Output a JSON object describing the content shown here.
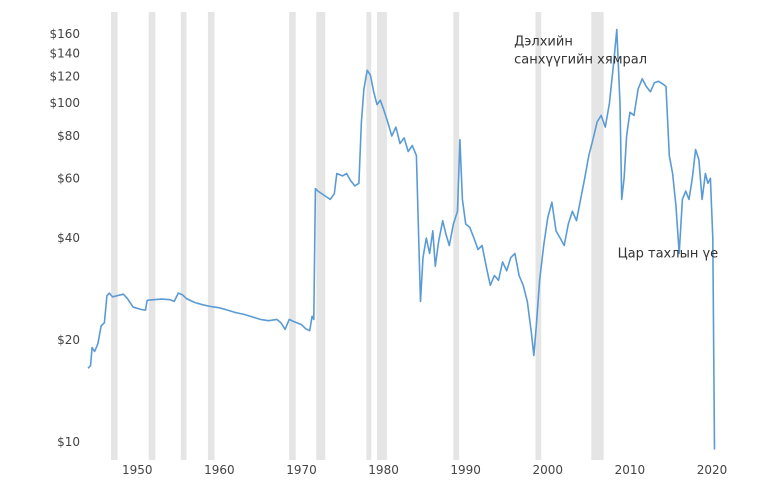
{
  "chart_data": {
    "type": "line",
    "title": "",
    "xlabel": "",
    "ylabel": "",
    "y_scale": "log",
    "xlim": [
      1944,
      2020
    ],
    "ylim": [
      9.5,
      170
    ],
    "grid": false,
    "legend": "none",
    "x_ticks": [
      1950,
      1960,
      1970,
      1980,
      1990,
      2000,
      2010,
      2020
    ],
    "x_tick_labels": [
      "1950",
      "1960",
      "1970",
      "1980",
      "1990",
      "2000",
      "2010",
      "2020"
    ],
    "y_ticks": [
      10,
      20,
      40,
      60,
      80,
      100,
      120,
      140,
      160
    ],
    "y_tick_labels": [
      "$10",
      "$20",
      "$40",
      "$60",
      "$80",
      "$100",
      "$120",
      "$140",
      "$160"
    ],
    "recession_bands": [
      [
        1946.8,
        1947.6
      ],
      [
        1951.4,
        1952.2
      ],
      [
        1955.3,
        1956.0
      ],
      [
        1958.6,
        1959.4
      ],
      [
        1968.5,
        1969.3
      ],
      [
        1971.8,
        1972.9
      ],
      [
        1977.9,
        1978.5
      ],
      [
        1979.2,
        1980.4
      ],
      [
        1988.5,
        1989.2
      ],
      [
        1998.5,
        1999.2
      ],
      [
        2005.3,
        2006.8
      ]
    ],
    "series": [
      {
        "color": "#5b9bd5",
        "points": [
          [
            1944.0,
            16.5
          ],
          [
            1944.3,
            16.8
          ],
          [
            1944.5,
            19.0
          ],
          [
            1944.8,
            18.5
          ],
          [
            1945.2,
            19.5
          ],
          [
            1945.6,
            22.0
          ],
          [
            1946.0,
            22.5
          ],
          [
            1946.3,
            27.0
          ],
          [
            1946.6,
            27.5
          ],
          [
            1947.0,
            26.8
          ],
          [
            1947.5,
            27.0
          ],
          [
            1948.3,
            27.3
          ],
          [
            1948.8,
            26.5
          ],
          [
            1949.5,
            25.0
          ],
          [
            1950.5,
            24.6
          ],
          [
            1951.0,
            24.5
          ],
          [
            1951.2,
            26.2
          ],
          [
            1952.0,
            26.3
          ],
          [
            1953.0,
            26.4
          ],
          [
            1954.0,
            26.3
          ],
          [
            1954.5,
            26.0
          ],
          [
            1955.0,
            27.5
          ],
          [
            1955.5,
            27.2
          ],
          [
            1956.0,
            26.5
          ],
          [
            1957.0,
            25.8
          ],
          [
            1958.0,
            25.4
          ],
          [
            1959.0,
            25.1
          ],
          [
            1960.0,
            24.9
          ],
          [
            1961.0,
            24.5
          ],
          [
            1962.0,
            24.1
          ],
          [
            1963.0,
            23.8
          ],
          [
            1964.0,
            23.4
          ],
          [
            1965.0,
            23.0
          ],
          [
            1966.0,
            22.8
          ],
          [
            1967.0,
            23.0
          ],
          [
            1967.5,
            22.5
          ],
          [
            1968.0,
            21.5
          ],
          [
            1968.5,
            23.0
          ],
          [
            1969.0,
            22.7
          ],
          [
            1970.0,
            22.2
          ],
          [
            1970.5,
            21.6
          ],
          [
            1971.0,
            21.3
          ],
          [
            1971.3,
            23.5
          ],
          [
            1971.5,
            23.0
          ],
          [
            1971.7,
            56.0
          ],
          [
            1972.0,
            55.0
          ],
          [
            1972.5,
            54.0
          ],
          [
            1973.0,
            53.0
          ],
          [
            1973.5,
            52.0
          ],
          [
            1974.0,
            54.0
          ],
          [
            1974.3,
            62.0
          ],
          [
            1975.0,
            61.0
          ],
          [
            1975.5,
            62.0
          ],
          [
            1976.0,
            59.0
          ],
          [
            1976.5,
            57.0
          ],
          [
            1977.0,
            58.0
          ],
          [
            1977.3,
            88.0
          ],
          [
            1977.6,
            110.0
          ],
          [
            1978.0,
            125.0
          ],
          [
            1978.4,
            121.0
          ],
          [
            1978.8,
            108.0
          ],
          [
            1979.2,
            99.0
          ],
          [
            1979.6,
            102.0
          ],
          [
            1980.0,
            96.0
          ],
          [
            1980.5,
            88.0
          ],
          [
            1981.0,
            80.0
          ],
          [
            1981.5,
            85.0
          ],
          [
            1982.0,
            76.0
          ],
          [
            1982.5,
            79.0
          ],
          [
            1983.0,
            72.0
          ],
          [
            1983.5,
            75.0
          ],
          [
            1984.0,
            70.0
          ],
          [
            1984.3,
            38.0
          ],
          [
            1984.5,
            26.0
          ],
          [
            1984.8,
            35.0
          ],
          [
            1985.2,
            40.0
          ],
          [
            1985.6,
            36.0
          ],
          [
            1986.0,
            42.0
          ],
          [
            1986.3,
            33.0
          ],
          [
            1986.7,
            39.0
          ],
          [
            1987.2,
            45.0
          ],
          [
            1987.6,
            41.0
          ],
          [
            1988.0,
            38.0
          ],
          [
            1988.5,
            44.0
          ],
          [
            1989.0,
            48.0
          ],
          [
            1989.3,
            78.0
          ],
          [
            1989.6,
            52.0
          ],
          [
            1990.0,
            44.0
          ],
          [
            1990.5,
            43.0
          ],
          [
            1991.0,
            40.0
          ],
          [
            1991.5,
            37.0
          ],
          [
            1992.0,
            38.0
          ],
          [
            1992.5,
            33.0
          ],
          [
            1993.0,
            29.0
          ],
          [
            1993.5,
            31.0
          ],
          [
            1994.0,
            30.0
          ],
          [
            1994.5,
            34.0
          ],
          [
            1995.0,
            32.0
          ],
          [
            1995.5,
            35.0
          ],
          [
            1996.0,
            36.0
          ],
          [
            1996.5,
            31.0
          ],
          [
            1997.0,
            29.0
          ],
          [
            1997.5,
            26.0
          ],
          [
            1998.0,
            21.0
          ],
          [
            1998.3,
            18.0
          ],
          [
            1998.6,
            22.0
          ],
          [
            1999.0,
            30.0
          ],
          [
            1999.5,
            38.0
          ],
          [
            2000.0,
            46.0
          ],
          [
            2000.5,
            51.0
          ],
          [
            2001.0,
            42.0
          ],
          [
            2001.5,
            40.0
          ],
          [
            2002.0,
            38.0
          ],
          [
            2002.5,
            44.0
          ],
          [
            2003.0,
            48.0
          ],
          [
            2003.5,
            45.0
          ],
          [
            2004.0,
            52.0
          ],
          [
            2004.5,
            60.0
          ],
          [
            2005.0,
            70.0
          ],
          [
            2005.5,
            78.0
          ],
          [
            2006.0,
            88.0
          ],
          [
            2006.5,
            92.0
          ],
          [
            2007.0,
            85.0
          ],
          [
            2007.5,
            100.0
          ],
          [
            2008.0,
            130.0
          ],
          [
            2008.4,
            165.0
          ],
          [
            2008.8,
            100.0
          ],
          [
            2009.0,
            52.0
          ],
          [
            2009.3,
            60.0
          ],
          [
            2009.6,
            80.0
          ],
          [
            2010.0,
            94.0
          ],
          [
            2010.5,
            92.0
          ],
          [
            2011.0,
            110.0
          ],
          [
            2011.5,
            118.0
          ],
          [
            2012.0,
            112.0
          ],
          [
            2012.5,
            108.0
          ],
          [
            2013.0,
            115.0
          ],
          [
            2013.5,
            116.0
          ],
          [
            2014.0,
            114.0
          ],
          [
            2014.4,
            112.0
          ],
          [
            2014.8,
            70.0
          ],
          [
            2015.2,
            62.0
          ],
          [
            2015.6,
            50.0
          ],
          [
            2016.0,
            36.0
          ],
          [
            2016.4,
            52.0
          ],
          [
            2016.8,
            55.0
          ],
          [
            2017.2,
            52.0
          ],
          [
            2017.6,
            60.0
          ],
          [
            2018.0,
            73.0
          ],
          [
            2018.4,
            68.0
          ],
          [
            2018.8,
            52.0
          ],
          [
            2019.2,
            62.0
          ],
          [
            2019.5,
            58.0
          ],
          [
            2019.8,
            60.0
          ],
          [
            2020.1,
            40.0
          ],
          [
            2020.3,
            9.5
          ]
        ]
      }
    ],
    "annotations": [
      {
        "lines": [
          "Дэлхийн",
          "санхүүгийн хямрал"
        ],
        "x": 1995.9,
        "y": 148
      },
      {
        "lines": [
          "Цар тахлын үе"
        ],
        "x": 2008.5,
        "y": 35
      }
    ]
  }
}
